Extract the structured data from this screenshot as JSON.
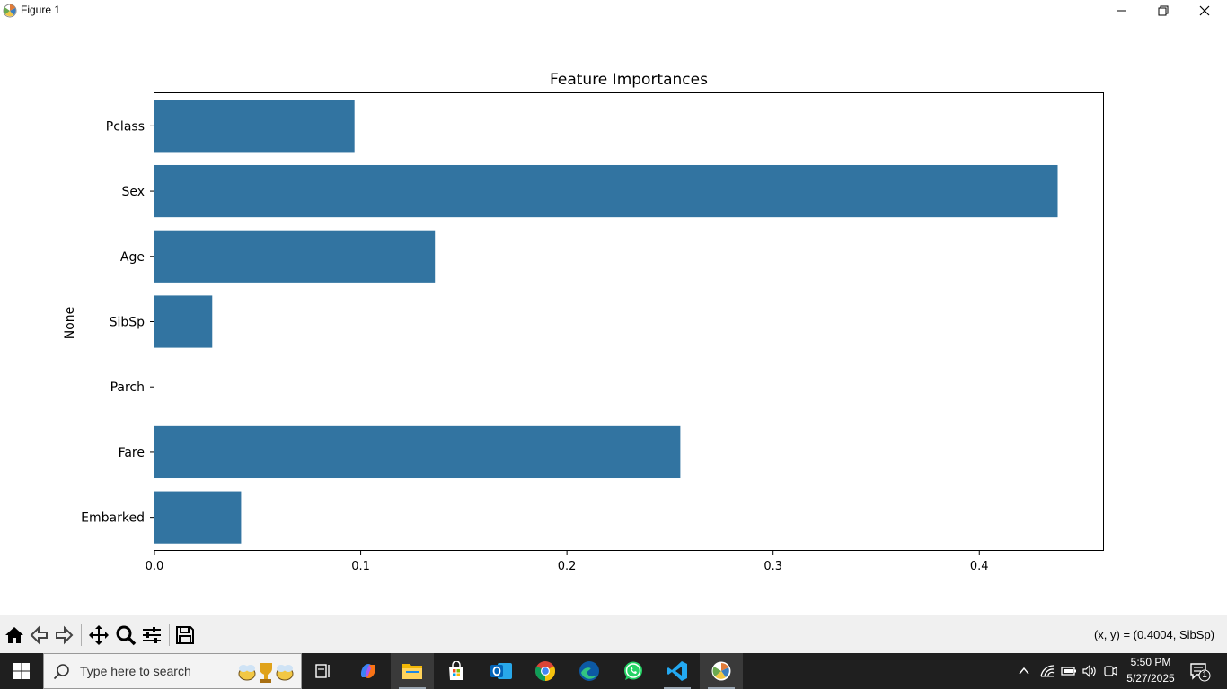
{
  "window": {
    "title": "Figure 1"
  },
  "chart_data": {
    "type": "bar",
    "orientation": "horizontal",
    "title": "Feature Importances",
    "xlabel": "",
    "ylabel": "None",
    "categories": [
      "Pclass",
      "Sex",
      "Age",
      "SibSp",
      "Parch",
      "Fare",
      "Embarked"
    ],
    "values": [
      0.097,
      0.438,
      0.136,
      0.028,
      0.0,
      0.255,
      0.042
    ],
    "xlim": [
      0,
      0.46
    ],
    "xticks": [
      0.0,
      0.1,
      0.2,
      0.3,
      0.4
    ],
    "xtick_labels": [
      "0.0",
      "0.1",
      "0.2",
      "0.3",
      "0.4"
    ],
    "bar_color": "#3274a1",
    "grid": false
  },
  "toolbar": {
    "coords": "(x, y) = (0.4004, SibSp)",
    "buttons": [
      "home-icon",
      "back-icon",
      "forward-icon",
      "pan-icon",
      "zoom-icon",
      "configure-icon",
      "save-icon"
    ]
  },
  "taskbar": {
    "search_placeholder": "Type here to search",
    "time": "5:50 PM",
    "date": "5/27/2025",
    "notification_count": "1",
    "apps": [
      "task-view-icon",
      "copilot-icon",
      "file-explorer-icon",
      "microsoft-store-icon",
      "outlook-icon",
      "chrome-icon",
      "edge-icon",
      "whatsapp-icon",
      "vscode-icon",
      "matplotlib-icon"
    ]
  }
}
